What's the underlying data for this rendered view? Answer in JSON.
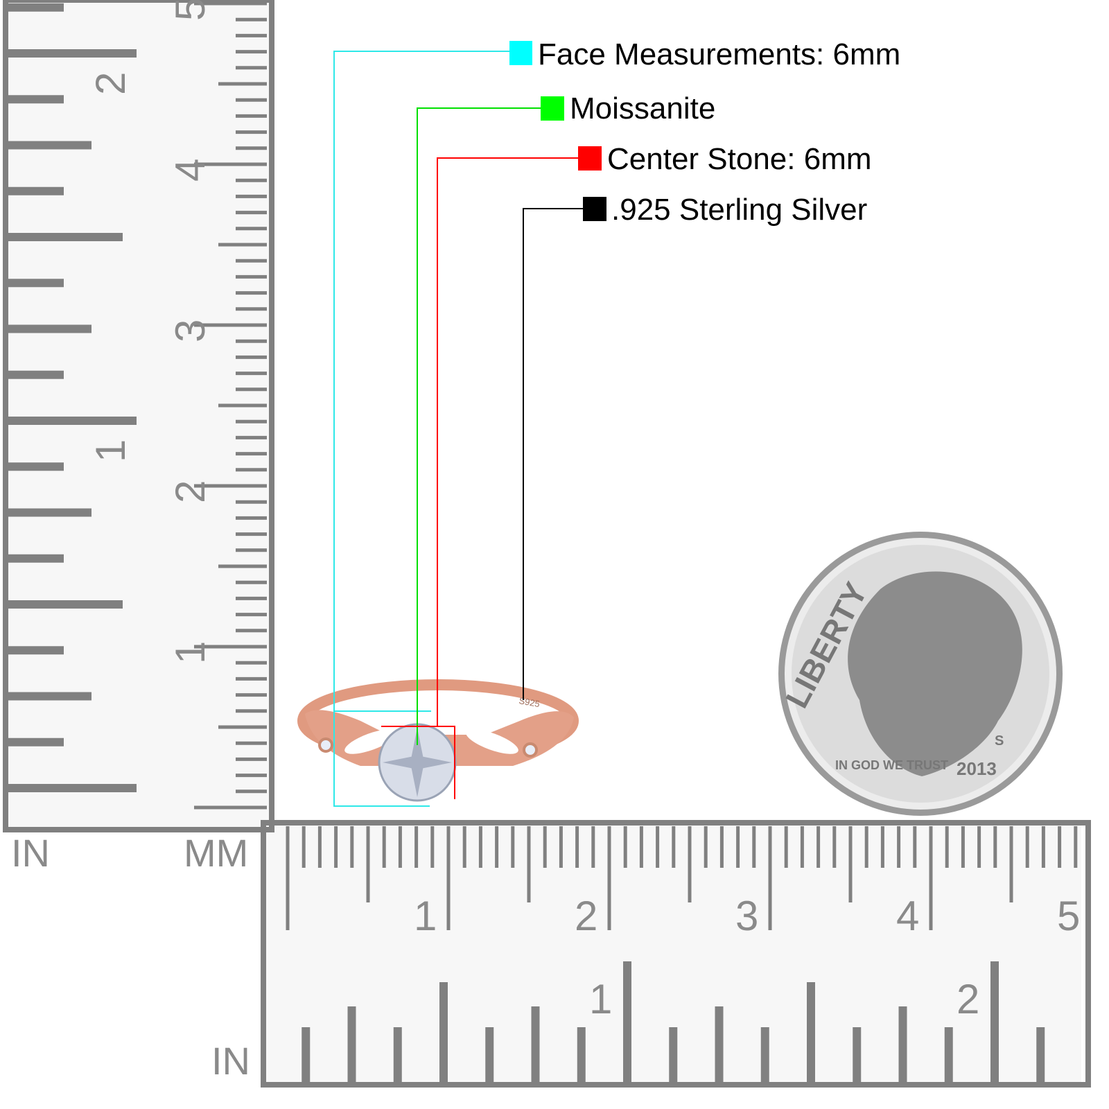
{
  "legend": [
    {
      "label": "Face Measurements: 6mm",
      "color": "#00ffff"
    },
    {
      "label": "Moissanite",
      "color": "#00ff00"
    },
    {
      "label": "Center Stone: 6mm",
      "color": "#ff0000"
    },
    {
      "label": ".925 Sterling Silver",
      "color": "#000000"
    }
  ],
  "rulers": {
    "left_unit_in": "IN",
    "left_unit_mm": "MM",
    "bottom_unit_in": "IN",
    "left_cm_labels": [
      "1",
      "2",
      "3",
      "4",
      "5"
    ],
    "left_in_labels": [
      "1",
      "2"
    ],
    "bottom_cm_labels": [
      "1",
      "2",
      "3",
      "4",
      "5"
    ],
    "bottom_in_labels": [
      "1",
      "2"
    ],
    "color": "#808080"
  },
  "ring": {
    "stamp": "S925",
    "metal_color": "#e0967c"
  },
  "coin": {
    "legend": "LIBERTY",
    "motto": "IN GOD WE TRUST",
    "year": "2013",
    "mint_mark": "S"
  }
}
